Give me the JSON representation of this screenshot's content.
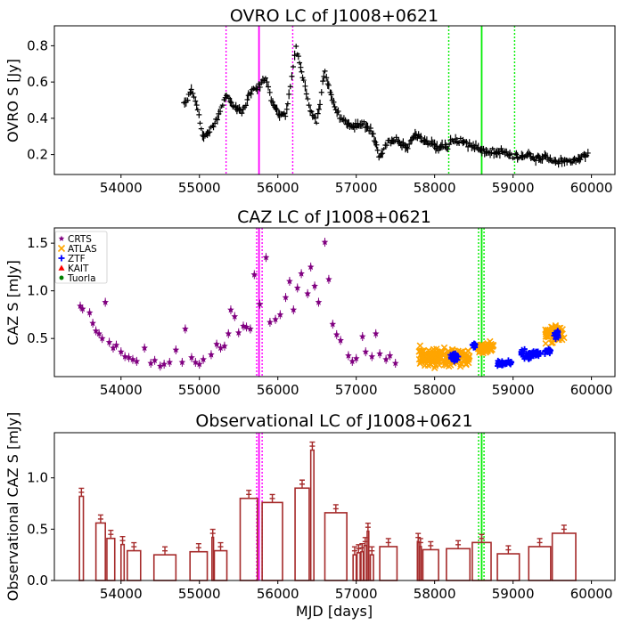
{
  "chart_data": [
    {
      "type": "scatter",
      "title": "OVRO LC of J1008+0621",
      "ylabel": "OVRO S [Jy]",
      "xlabel": "",
      "xlim": [
        53150,
        60300
      ],
      "ylim": [
        0.09,
        0.91
      ],
      "xticks": [
        54000,
        55000,
        56000,
        57000,
        58000,
        59000,
        60000
      ],
      "yticks": [
        0.2,
        0.4,
        0.6,
        0.8
      ],
      "ytick_labels": [
        "0.2",
        "0.4",
        "0.6",
        "0.8"
      ],
      "colors": {
        "data": "#000000",
        "flare1": "#ff00ff",
        "flare2": "#00ee00"
      },
      "vlines": [
        {
          "x": 55340,
          "color": "#ff00ff",
          "style": "dotted"
        },
        {
          "x": 55760,
          "color": "#ff00ff",
          "style": "solid"
        },
        {
          "x": 56190,
          "color": "#ff00ff",
          "style": "dotted"
        },
        {
          "x": 58180,
          "color": "#00ee00",
          "style": "dotted"
        },
        {
          "x": 58600,
          "color": "#00ee00",
          "style": "solid"
        },
        {
          "x": 59020,
          "color": "#00ee00",
          "style": "dotted"
        }
      ],
      "anchors": [
        [
          54800,
          0.48
        ],
        [
          54900,
          0.55
        ],
        [
          54970,
          0.47
        ],
        [
          55050,
          0.29
        ],
        [
          55120,
          0.33
        ],
        [
          55200,
          0.37
        ],
        [
          55280,
          0.45
        ],
        [
          55330,
          0.53
        ],
        [
          55450,
          0.46
        ],
        [
          55550,
          0.44
        ],
        [
          55650,
          0.55
        ],
        [
          55750,
          0.58
        ],
        [
          55850,
          0.62
        ],
        [
          55920,
          0.5
        ],
        [
          56000,
          0.43
        ],
        [
          56100,
          0.42
        ],
        [
          56180,
          0.62
        ],
        [
          56230,
          0.8
        ],
        [
          56300,
          0.67
        ],
        [
          56400,
          0.46
        ],
        [
          56500,
          0.38
        ],
        [
          56600,
          0.66
        ],
        [
          56700,
          0.48
        ],
        [
          56800,
          0.4
        ],
        [
          56950,
          0.36
        ],
        [
          57100,
          0.37
        ],
        [
          57200,
          0.33
        ],
        [
          57300,
          0.18
        ],
        [
          57400,
          0.27
        ],
        [
          57500,
          0.28
        ],
        [
          57650,
          0.24
        ],
        [
          57750,
          0.31
        ],
        [
          57900,
          0.27
        ],
        [
          58050,
          0.24
        ],
        [
          58150,
          0.24
        ],
        [
          58250,
          0.28
        ],
        [
          58400,
          0.26
        ],
        [
          58550,
          0.23
        ],
        [
          58700,
          0.21
        ],
        [
          58850,
          0.22
        ],
        [
          59000,
          0.19
        ],
        [
          59200,
          0.2
        ],
        [
          59300,
          0.17
        ],
        [
          59400,
          0.19
        ],
        [
          59550,
          0.16
        ],
        [
          59750,
          0.16
        ],
        [
          59900,
          0.19
        ],
        [
          59960,
          0.2
        ]
      ],
      "x_start": 54800,
      "x_end": 59960,
      "step": 12,
      "noise": 0.02
    },
    {
      "type": "scatter",
      "title": "CAZ LC of J1008+0621",
      "ylabel": "CAZ S [mJy]",
      "xlabel": "",
      "xlim": [
        53150,
        60300
      ],
      "ylim": [
        0.1,
        1.66
      ],
      "xticks": [
        54000,
        55000,
        56000,
        57000,
        58000,
        59000,
        60000
      ],
      "yticks": [
        0.5,
        1.0,
        1.5
      ],
      "ytick_labels": [
        "0.5",
        "1.0",
        "1.5"
      ],
      "vlines": [
        {
          "x": 55730,
          "color": "#ff00ff",
          "style": "dotted"
        },
        {
          "x": 55760,
          "color": "#ff00ff",
          "style": "solid"
        },
        {
          "x": 55800,
          "color": "#ff00ff",
          "style": "dotted"
        },
        {
          "x": 58560,
          "color": "#00ee00",
          "style": "dotted"
        },
        {
          "x": 58600,
          "color": "#00ee00",
          "style": "solid"
        },
        {
          "x": 58630,
          "color": "#00ee00",
          "style": "dotted"
        }
      ],
      "legend": {
        "position": "upper-left",
        "entries": [
          {
            "label": "CRTS",
            "marker": "star",
            "color": "#800080"
          },
          {
            "label": "ATLAS",
            "marker": "x",
            "color": "#ffa500"
          },
          {
            "label": "ZTF",
            "marker": "plus",
            "color": "#0000ff"
          },
          {
            "label": "KAIT",
            "marker": "triangle",
            "color": "#ff0000"
          },
          {
            "label": "Tuorla",
            "marker": "circle",
            "color": "#008000"
          }
        ]
      },
      "series": [
        {
          "name": "CRTS",
          "marker": "star",
          "color": "#800080",
          "points": [
            [
              53480,
              0.84
            ],
            [
              53510,
              0.81
            ],
            [
              53600,
              0.77
            ],
            [
              53640,
              0.66
            ],
            [
              53680,
              0.58
            ],
            [
              53720,
              0.55
            ],
            [
              53760,
              0.5
            ],
            [
              53800,
              0.88
            ],
            [
              53850,
              0.46
            ],
            [
              53900,
              0.4
            ],
            [
              53940,
              0.43
            ],
            [
              54000,
              0.36
            ],
            [
              54050,
              0.31
            ],
            [
              54100,
              0.3
            ],
            [
              54150,
              0.28
            ],
            [
              54200,
              0.26
            ],
            [
              54300,
              0.4
            ],
            [
              54380,
              0.24
            ],
            [
              54430,
              0.27
            ],
            [
              54500,
              0.21
            ],
            [
              54550,
              0.23
            ],
            [
              54620,
              0.25
            ],
            [
              54700,
              0.38
            ],
            [
              54780,
              0.25
            ],
            [
              54820,
              0.6
            ],
            [
              54900,
              0.3
            ],
            [
              54950,
              0.25
            ],
            [
              55000,
              0.23
            ],
            [
              55050,
              0.28
            ],
            [
              55150,
              0.33
            ],
            [
              55220,
              0.44
            ],
            [
              55270,
              0.4
            ],
            [
              55320,
              0.42
            ],
            [
              55370,
              0.55
            ],
            [
              55400,
              0.8
            ],
            [
              55450,
              0.73
            ],
            [
              55500,
              0.56
            ],
            [
              55560,
              0.63
            ],
            [
              55600,
              0.62
            ],
            [
              55650,
              0.6
            ],
            [
              55700,
              1.17
            ],
            [
              55770,
              0.86
            ],
            [
              55850,
              1.35
            ],
            [
              55900,
              0.67
            ],
            [
              55970,
              0.7
            ],
            [
              56030,
              0.75
            ],
            [
              56100,
              0.93
            ],
            [
              56150,
              1.1
            ],
            [
              56200,
              0.8
            ],
            [
              56250,
              1.03
            ],
            [
              56300,
              1.18
            ],
            [
              56380,
              0.97
            ],
            [
              56420,
              1.25
            ],
            [
              56470,
              1.05
            ],
            [
              56520,
              0.88
            ],
            [
              56600,
              1.51
            ],
            [
              56650,
              1.12
            ],
            [
              56700,
              0.65
            ],
            [
              56750,
              0.54
            ],
            [
              56800,
              0.48
            ],
            [
              56900,
              0.32
            ],
            [
              56950,
              0.26
            ],
            [
              57000,
              0.29
            ],
            [
              57080,
              0.52
            ],
            [
              57120,
              0.36
            ],
            [
              57200,
              0.31
            ],
            [
              57250,
              0.55
            ],
            [
              57300,
              0.34
            ],
            [
              57380,
              0.28
            ],
            [
              57430,
              0.32
            ],
            [
              57500,
              0.24
            ]
          ]
        },
        {
          "name": "ATLAS",
          "marker": "x",
          "color": "#ffa500",
          "clusters": [
            [
              57800,
              58450,
              0.3,
              0.16
            ],
            [
              58550,
              58750,
              0.4,
              0.1
            ],
            [
              59400,
              59650,
              0.55,
              0.15
            ]
          ]
        },
        {
          "name": "ZTF",
          "marker": "plus",
          "color": "#0000ff",
          "clusters": [
            [
              58200,
              58300,
              0.3,
              0.08
            ],
            [
              58480,
              58520,
              0.42,
              0.06
            ],
            [
              58800,
              58980,
              0.24,
              0.05
            ],
            [
              59100,
              59350,
              0.33,
              0.08
            ],
            [
              59400,
              59480,
              0.36,
              0.06
            ],
            [
              59520,
              59580,
              0.55,
              0.08
            ]
          ]
        },
        {
          "name": "KAIT",
          "marker": "triangle",
          "color": "#ff0000",
          "points": []
        },
        {
          "name": "Tuorla",
          "marker": "circle",
          "color": "#008000",
          "points": []
        }
      ]
    },
    {
      "type": "bar",
      "title": "Observational LC of J1008+0621",
      "ylabel": "Observational CAZ S [mJy]",
      "xlabel": "MJD [days]",
      "xlim": [
        53150,
        60300
      ],
      "ylim": [
        0.0,
        1.44
      ],
      "xticks": [
        54000,
        55000,
        56000,
        57000,
        58000,
        59000,
        60000
      ],
      "yticks": [
        0.0,
        0.5,
        1.0
      ],
      "ytick_labels": [
        "0.0",
        "0.5",
        "1.0"
      ],
      "bar_color": "#a52a2a",
      "vlines": [
        {
          "x": 55730,
          "color": "#ff00ff",
          "style": "dotted"
        },
        {
          "x": 55760,
          "color": "#ff00ff",
          "style": "solid"
        },
        {
          "x": 55800,
          "color": "#ff00ff",
          "style": "dotted"
        },
        {
          "x": 58560,
          "color": "#00ee00",
          "style": "dotted"
        },
        {
          "x": 58600,
          "color": "#00ee00",
          "style": "solid"
        },
        {
          "x": 58630,
          "color": "#00ee00",
          "style": "dotted"
        }
      ],
      "bars": [
        {
          "start": 53470,
          "end": 53520,
          "value": 0.82
        },
        {
          "start": 53680,
          "end": 53800,
          "value": 0.56
        },
        {
          "start": 53820,
          "end": 53920,
          "value": 0.41
        },
        {
          "start": 54000,
          "end": 54040,
          "value": 0.35
        },
        {
          "start": 54080,
          "end": 54250,
          "value": 0.29
        },
        {
          "start": 54420,
          "end": 54700,
          "value": 0.25
        },
        {
          "start": 54880,
          "end": 55100,
          "value": 0.28
        },
        {
          "start": 55160,
          "end": 55180,
          "value": 0.42
        },
        {
          "start": 55190,
          "end": 55350,
          "value": 0.29
        },
        {
          "start": 55520,
          "end": 55740,
          "value": 0.8
        },
        {
          "start": 55800,
          "end": 56060,
          "value": 0.76
        },
        {
          "start": 56220,
          "end": 56400,
          "value": 0.9
        },
        {
          "start": 56420,
          "end": 56460,
          "value": 1.27
        },
        {
          "start": 56600,
          "end": 56880,
          "value": 0.66
        },
        {
          "start": 56960,
          "end": 57000,
          "value": 0.25
        },
        {
          "start": 57010,
          "end": 57050,
          "value": 0.27
        },
        {
          "start": 57060,
          "end": 57090,
          "value": 0.28
        },
        {
          "start": 57100,
          "end": 57130,
          "value": 0.34
        },
        {
          "start": 57140,
          "end": 57160,
          "value": 0.48
        },
        {
          "start": 57180,
          "end": 57220,
          "value": 0.25
        },
        {
          "start": 57300,
          "end": 57520,
          "value": 0.33
        },
        {
          "start": 57780,
          "end": 57800,
          "value": 0.38
        },
        {
          "start": 57810,
          "end": 57830,
          "value": 0.33
        },
        {
          "start": 57850,
          "end": 58050,
          "value": 0.3
        },
        {
          "start": 58150,
          "end": 58450,
          "value": 0.31
        },
        {
          "start": 58480,
          "end": 58720,
          "value": 0.37
        },
        {
          "start": 58800,
          "end": 59080,
          "value": 0.26
        },
        {
          "start": 59200,
          "end": 59480,
          "value": 0.33
        },
        {
          "start": 59500,
          "end": 59800,
          "value": 0.46
        }
      ]
    }
  ]
}
